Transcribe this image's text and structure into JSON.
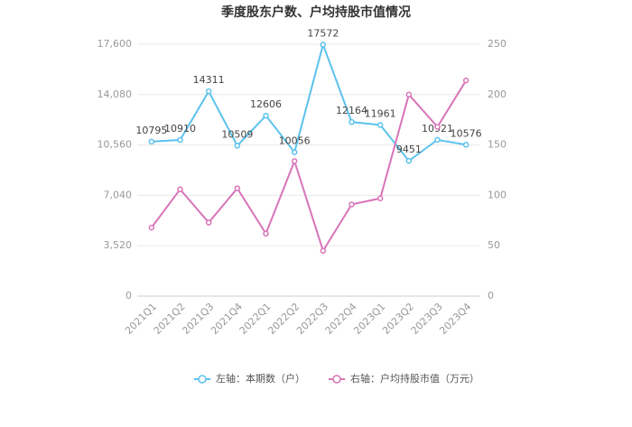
{
  "chart_data": {
    "type": "line",
    "title": "季度股东户数、户均持股市值情况",
    "categories": [
      "2021Q1",
      "2021Q2",
      "2021Q3",
      "2021Q4",
      "2022Q1",
      "2022Q2",
      "2022Q3",
      "2022Q4",
      "2023Q1",
      "2023Q2",
      "2023Q3",
      "2023Q4"
    ],
    "series": [
      {
        "name": "左轴：本期数（户）",
        "color": "#5bc2ec",
        "values": [
          10795,
          10910,
          14311,
          10509,
          12606,
          10056,
          17572,
          12164,
          11961,
          9451,
          10921,
          10576
        ]
      },
      {
        "name": "右轴：户均持股市值（万元）",
        "color": "#d874b9",
        "axis": "y2",
        "values": [
          68,
          106,
          73,
          107,
          62,
          134,
          45,
          91,
          97,
          200,
          168,
          214
        ]
      }
    ],
    "ylim": [
      0,
      17600
    ],
    "yticks": [
      0,
      {
        "value": 3520,
        "label": "3,520"
      },
      {
        "value": 7040,
        "label": "7,040"
      },
      {
        "value": 10560,
        "label": "10,560"
      },
      {
        "value": 14080,
        "label": "14,080"
      },
      {
        "value": 17600,
        "label": "17,600"
      }
    ],
    "y2lim": [
      0,
      250
    ],
    "y2ticks": [
      0,
      50,
      100,
      150,
      200,
      250
    ],
    "grid": true,
    "legend": "bottom"
  }
}
